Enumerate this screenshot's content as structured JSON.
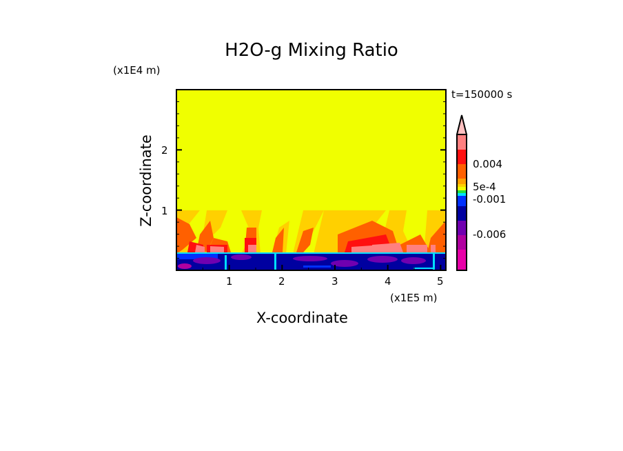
{
  "chart_data": {
    "type": "heatmap",
    "title": "H2O-g Mixing Ratio",
    "xlabel": "X-coordinate",
    "ylabel": "Z-coordinate",
    "x_unit": "(x1E5 m)",
    "y_unit": "(x1E4 m)",
    "time_label": "t=150000 s",
    "xlim": [
      0,
      5.1
    ],
    "ylim": [
      0,
      3.0
    ],
    "x_ticks": [
      "1",
      "2",
      "3",
      "4",
      "5"
    ],
    "x_tick_values": [
      1,
      2,
      3,
      4,
      5
    ],
    "y_ticks": [
      "1",
      "2"
    ],
    "y_tick_values": [
      1,
      2
    ],
    "colorbar": {
      "labels": [
        "0.004",
        "5e-4",
        "-0.001",
        "-0.006"
      ],
      "colors_top_to_bottom": [
        "#ffc0c0",
        "#ff8080",
        "#ff1010",
        "#ff6000",
        "#ffa000",
        "#ffd000",
        "#f0ff00",
        "#20e040",
        "#00e0ff",
        "#0030ff",
        "#0000a0",
        "#7000b0",
        "#b000a0",
        "#e800a8"
      ],
      "extend": "max"
    },
    "background_value_color": "#f0ff00",
    "features": {
      "perturbation_layer_top": 1.0,
      "negative_layer_top": 0.3
    }
  }
}
